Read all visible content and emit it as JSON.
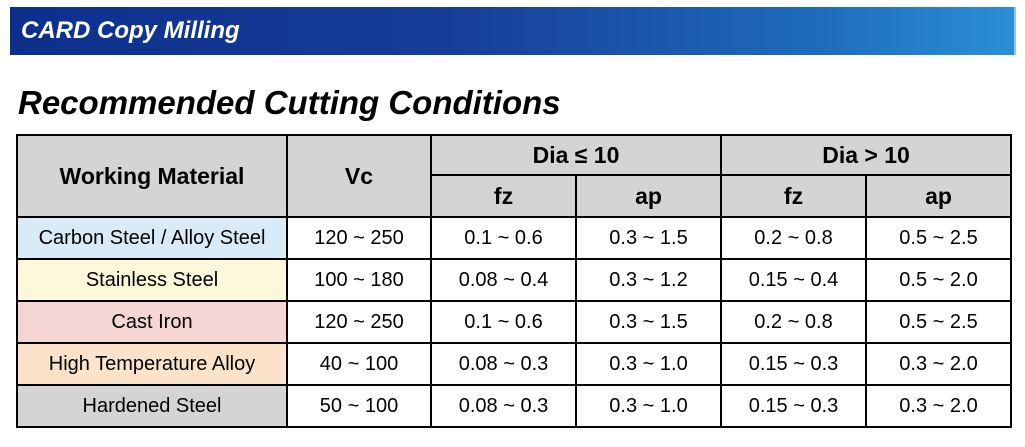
{
  "banner": {
    "title": "CARD Copy Milling",
    "gradient_start": "#0c2f8c",
    "gradient_end": "#2a8fd6"
  },
  "section": {
    "title": "Recommended Cutting Conditions"
  },
  "table": {
    "header": {
      "material": "Working Material",
      "vc": "Vc",
      "group_small": "Dia ≤ 10",
      "group_large": "Dia > 10",
      "fz": "fz",
      "ap": "ap"
    },
    "header_bg": "#d4d4d4",
    "rows": [
      {
        "material": "Carbon Steel / Alloy Steel",
        "color": "#d9ebf7",
        "vc": "120 ~ 250",
        "small_fz": "0.1 ~ 0.6",
        "small_ap": "0.3 ~ 1.5",
        "large_fz": "0.2 ~ 0.8",
        "large_ap": "0.5 ~ 2.5"
      },
      {
        "material": "Stainless Steel",
        "color": "#fdf8d9",
        "vc": "100 ~ 180",
        "small_fz": "0.08 ~ 0.4",
        "small_ap": "0.3 ~ 1.2",
        "large_fz": "0.15 ~ 0.4",
        "large_ap": "0.5 ~ 2.0"
      },
      {
        "material": "Cast Iron",
        "color": "#f6d6d4",
        "vc": "120 ~ 250",
        "small_fz": "0.1 ~ 0.6",
        "small_ap": "0.3 ~ 1.5",
        "large_fz": "0.2 ~ 0.8",
        "large_ap": "0.5 ~ 2.5"
      },
      {
        "material": "High Temperature Alloy",
        "color": "#fbe3c9",
        "vc": "40 ~ 100",
        "small_fz": "0.08 ~ 0.3",
        "small_ap": "0.3 ~ 1.0",
        "large_fz": "0.15 ~ 0.3",
        "large_ap": "0.3 ~ 2.0"
      },
      {
        "material": "Hardened Steel",
        "color": "#d4d4d4",
        "vc": "50 ~ 100",
        "small_fz": "0.08 ~ 0.3",
        "small_ap": "0.3 ~ 1.0",
        "large_fz": "0.15 ~ 0.3",
        "large_ap": "0.3 ~ 2.0"
      }
    ]
  }
}
